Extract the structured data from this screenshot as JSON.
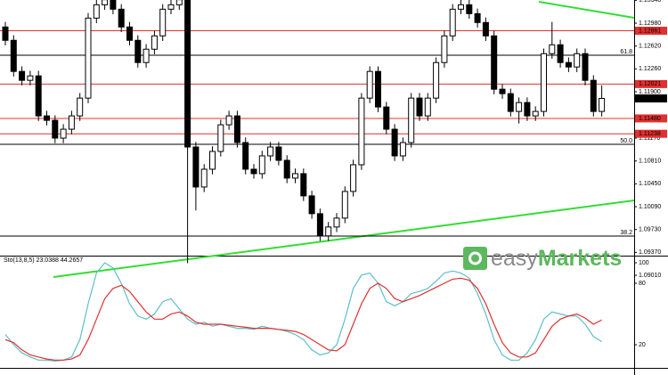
{
  "chart_data": {
    "type": "candlestick",
    "ylim": [
      1.0894,
      1.13345
    ],
    "yticks": [
      {
        "value": 1.1334,
        "label": "1.13340"
      },
      {
        "value": 1.1298,
        "label": "1.12980"
      },
      {
        "value": 1.1262,
        "label": "1.12620"
      },
      {
        "value": 1.1226,
        "label": "1.12260"
      },
      {
        "value": 1.119,
        "label": "1.11900"
      },
      {
        "value": 1.1117,
        "label": "1.11170"
      },
      {
        "value": 1.1081,
        "label": "1.10810"
      },
      {
        "value": 1.1045,
        "label": "1.10450"
      },
      {
        "value": 1.1009,
        "label": "1.10090"
      },
      {
        "value": 1.0973,
        "label": "1.09730"
      },
      {
        "value": 1.0937,
        "label": "1.09370"
      },
      {
        "value": 1.0901,
        "label": "1.09010"
      }
    ],
    "up_color": "#ffffff",
    "down_color": "#000000",
    "open": [
      1.1292,
      1.1271,
      1.1222,
      1.1208,
      1.1215,
      1.1152,
      1.1145,
      1.1117,
      1.1131,
      1.1152,
      1.118,
      1.1306,
      1.1327,
      1.1335,
      1.132,
      1.1292,
      1.1271,
      1.1236,
      1.1257,
      1.1278,
      1.132,
      1.1327,
      1.1335,
      1.1103,
      1.104,
      1.1068,
      1.1096,
      1.1138,
      1.1152,
      1.111,
      1.1068,
      1.1061,
      1.1089,
      1.1103,
      1.1082,
      1.1054,
      1.1061,
      1.1026,
      1.0998,
      1.0963,
      1.0977,
      1.0991,
      1.1033,
      1.1075,
      1.118,
      1.1222,
      1.1166,
      1.1131,
      1.1089,
      1.111,
      1.118,
      1.1152,
      1.118,
      1.1236,
      1.1278,
      1.132,
      1.1327,
      1.1313,
      1.1299,
      1.1278,
      1.1194,
      1.1187,
      1.1159,
      1.1173,
      1.1152,
      1.1159,
      1.125,
      1.1264,
      1.1236,
      1.1229,
      1.125,
      1.1208,
      1.1159
    ],
    "high": [
      1.13,
      1.1279,
      1.123,
      1.1223,
      1.1223,
      1.116,
      1.1153,
      1.1139,
      1.116,
      1.1188,
      1.1314,
      1.1335,
      1.1343,
      1.1343,
      1.1328,
      1.13,
      1.1279,
      1.1265,
      1.1286,
      1.1328,
      1.1335,
      1.1343,
      1.1343,
      1.1111,
      1.1076,
      1.1104,
      1.1146,
      1.116,
      1.116,
      1.1118,
      1.1076,
      1.1097,
      1.1111,
      1.1111,
      1.109,
      1.1069,
      1.1069,
      1.1034,
      1.1006,
      1.0985,
      1.0999,
      1.1041,
      1.1083,
      1.1188,
      1.123,
      1.123,
      1.1174,
      1.1139,
      1.1118,
      1.1188,
      1.1188,
      1.1188,
      1.1244,
      1.1286,
      1.1328,
      1.1335,
      1.1335,
      1.1321,
      1.1307,
      1.1286,
      1.1202,
      1.1195,
      1.1181,
      1.1181,
      1.1167,
      1.1258,
      1.13,
      1.1272,
      1.1244,
      1.1258,
      1.1258,
      1.1216,
      1.12
    ],
    "low": [
      1.1263,
      1.1214,
      1.12,
      1.12,
      1.1144,
      1.1137,
      1.1109,
      1.1109,
      1.1123,
      1.1144,
      1.1172,
      1.1298,
      1.1319,
      1.1312,
      1.1284,
      1.1263,
      1.1228,
      1.1228,
      1.1249,
      1.127,
      1.1312,
      1.1319,
      1.092,
      1.1003,
      1.1032,
      1.106,
      1.1088,
      1.113,
      1.1102,
      1.106,
      1.1053,
      1.1053,
      1.1081,
      1.1074,
      1.1046,
      1.1046,
      1.1018,
      1.099,
      1.0955,
      1.0955,
      1.0969,
      1.0983,
      1.1025,
      1.1067,
      1.1172,
      1.1158,
      1.1123,
      1.1081,
      1.1081,
      1.1102,
      1.1144,
      1.1144,
      1.1172,
      1.1228,
      1.127,
      1.1312,
      1.1305,
      1.1291,
      1.127,
      1.1186,
      1.1179,
      1.1151,
      1.114,
      1.1144,
      1.1144,
      1.1151,
      1.1242,
      1.1228,
      1.1221,
      1.1221,
      1.12,
      1.1151,
      1.1151
    ],
    "close": [
      1.1271,
      1.1222,
      1.1208,
      1.1215,
      1.1152,
      1.1145,
      1.1117,
      1.1131,
      1.1152,
      1.118,
      1.1306,
      1.1327,
      1.1335,
      1.132,
      1.1292,
      1.1271,
      1.1236,
      1.1257,
      1.1278,
      1.132,
      1.1327,
      1.1335,
      1.1103,
      1.104,
      1.1068,
      1.1096,
      1.1138,
      1.1152,
      1.111,
      1.1068,
      1.1061,
      1.1089,
      1.1103,
      1.1082,
      1.1054,
      1.1061,
      1.1026,
      1.0998,
      1.0963,
      1.0977,
      1.0991,
      1.1033,
      1.1075,
      1.118,
      1.1222,
      1.1166,
      1.1131,
      1.1089,
      1.111,
      1.118,
      1.1152,
      1.118,
      1.1236,
      1.1278,
      1.132,
      1.1327,
      1.1313,
      1.1299,
      1.1278,
      1.1194,
      1.1187,
      1.1159,
      1.1173,
      1.1152,
      1.1159,
      1.125,
      1.1264,
      1.1236,
      1.1229,
      1.125,
      1.1208,
      1.1159,
      1.11795
    ],
    "last_price": {
      "value": 1.11795,
      "label": "1.11795",
      "color": "#000000"
    },
    "levels": [
      {
        "value": 1.12861,
        "label": "1.12861"
      },
      {
        "value": 1.12021,
        "label": "1.12021"
      },
      {
        "value": 1.1148,
        "label": "1.11480"
      },
      {
        "value": 1.11238,
        "label": "1.11238"
      }
    ],
    "level_color": "#e03030",
    "fib_levels": [
      {
        "value": 1.12475,
        "label": "61.8"
      },
      {
        "value": 1.11072,
        "label": "50.0"
      },
      {
        "value": 1.09627,
        "label": "38.2"
      }
    ],
    "oscillator": {
      "title": "Sto(13,8,5) 23.0388 44.2657",
      "ylim": [
        0,
        100
      ],
      "yticks": [
        100,
        80,
        20
      ],
      "series": [
        {
          "color": "#5bbfca",
          "values": [
            30,
            20,
            12,
            8,
            5,
            5,
            4,
            5,
            8,
            25,
            60,
            90,
            100,
            95,
            80,
            60,
            48,
            45,
            50,
            62,
            65,
            55,
            45,
            40,
            42,
            38,
            40,
            38,
            36,
            36,
            35,
            38,
            36,
            35,
            33,
            30,
            25,
            15,
            10,
            12,
            20,
            45,
            75,
            88,
            90,
            80,
            62,
            58,
            62,
            70,
            72,
            75,
            82,
            90,
            92,
            90,
            85,
            70,
            50,
            25,
            10,
            5,
            5,
            12,
            25,
            45,
            52,
            50,
            48,
            48,
            40,
            28,
            23.0388
          ]
        },
        {
          "color": "#e03030",
          "values": [
            25,
            22,
            15,
            10,
            8,
            6,
            5,
            5,
            6,
            10,
            25,
            45,
            65,
            75,
            78,
            72,
            62,
            52,
            45,
            45,
            50,
            52,
            48,
            42,
            40,
            40,
            40,
            39,
            38,
            37,
            36,
            36,
            36,
            35,
            34,
            33,
            30,
            25,
            20,
            15,
            14,
            20,
            40,
            60,
            75,
            80,
            75,
            65,
            62,
            65,
            68,
            72,
            76,
            80,
            84,
            85,
            83,
            75,
            60,
            40,
            22,
            12,
            8,
            8,
            12,
            25,
            38,
            45,
            48,
            50,
            46,
            40,
            44.2657
          ]
        }
      ]
    },
    "logo": {
      "easy": "easy",
      "markets": "Markets"
    }
  }
}
